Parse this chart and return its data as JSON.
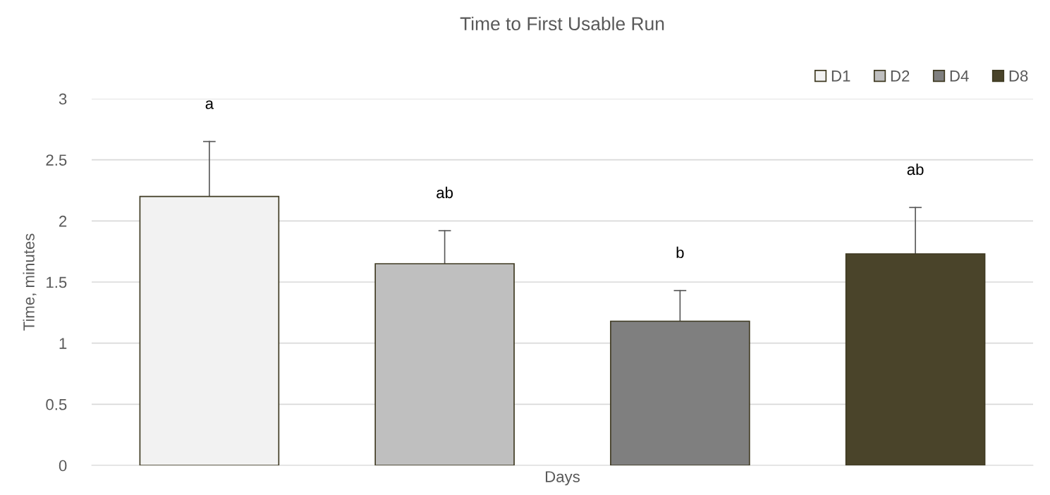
{
  "chart_data": {
    "type": "bar",
    "title": "Time to First Usable Run",
    "xlabel": "Days",
    "ylabel": "Time, minutes",
    "categories": [
      null
    ],
    "series": [
      {
        "name": "D1",
        "color": "#f2f2f2",
        "values": [
          2.2
        ],
        "errors": [
          [
            2.2,
            2.65
          ]
        ]
      },
      {
        "name": "D2",
        "color": "#bfbfbf",
        "values": [
          1.65
        ],
        "errors": [
          [
            1.65,
            1.92
          ]
        ]
      },
      {
        "name": "D4",
        "color": "#7f7f7f",
        "values": [
          1.18
        ],
        "errors": [
          [
            1.18,
            1.43
          ]
        ]
      },
      {
        "name": "D8",
        "color": "#4a442a",
        "values": [
          1.73
        ],
        "errors": [
          [
            1.73,
            2.11
          ]
        ]
      }
    ],
    "annotations": [
      "a",
      "ab",
      "b",
      "ab"
    ],
    "ylim": [
      0,
      3
    ],
    "yticks": [
      0,
      0.5,
      1,
      1.5,
      2,
      2.5,
      3
    ],
    "grid": "y",
    "legend": "top right"
  }
}
